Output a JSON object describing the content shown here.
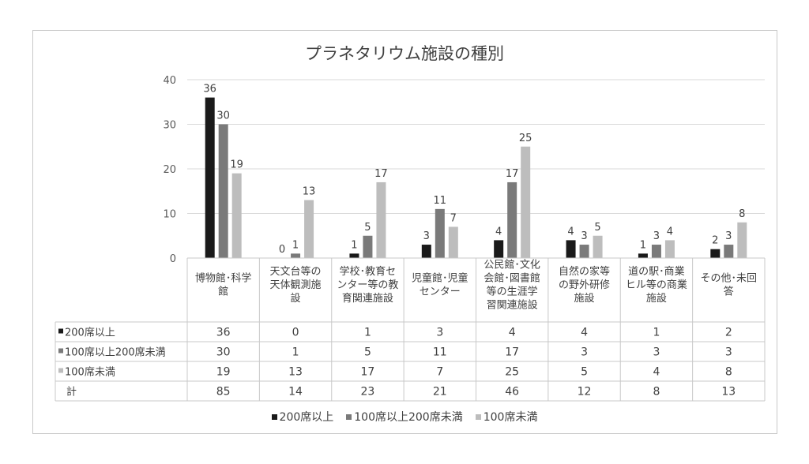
{
  "chart_data": {
    "type": "bar",
    "title": "プラネタリウム施設の種別",
    "categories": [
      [
        "博物館･科学",
        "館"
      ],
      [
        "天文台等の",
        "天体観測施",
        "設"
      ],
      [
        "学校･教育セ",
        "ンター等の教",
        "育関連施設"
      ],
      [
        "児童館･児童",
        "センター"
      ],
      [
        "公民館･文化",
        "会館･図書館",
        "等の生涯学",
        "習関連施設"
      ],
      [
        "自然の家等",
        "の野外研修",
        "施設"
      ],
      [
        "道の駅･商業",
        "ヒル等の商業",
        "施設"
      ],
      [
        "その他･未回",
        "答"
      ]
    ],
    "series": [
      {
        "name": "200席以上",
        "color": "#1a1a1a",
        "values": [
          36,
          0,
          1,
          3,
          4,
          4,
          1,
          2
        ]
      },
      {
        "name": "100席以上200席未満",
        "color": "#7a7a7a",
        "values": [
          30,
          1,
          5,
          11,
          17,
          3,
          3,
          3
        ]
      },
      {
        "name": "100席未満",
        "color": "#bdbdbd",
        "values": [
          19,
          13,
          17,
          7,
          25,
          5,
          4,
          8
        ]
      }
    ],
    "total": {
      "name": "計",
      "values": [
        85,
        14,
        23,
        21,
        46,
        12,
        8,
        13
      ]
    },
    "ylim": [
      0,
      40
    ],
    "yticks": [
      0,
      10,
      20,
      30,
      40
    ],
    "grid": true,
    "legend": "bottom",
    "data_table": true
  }
}
